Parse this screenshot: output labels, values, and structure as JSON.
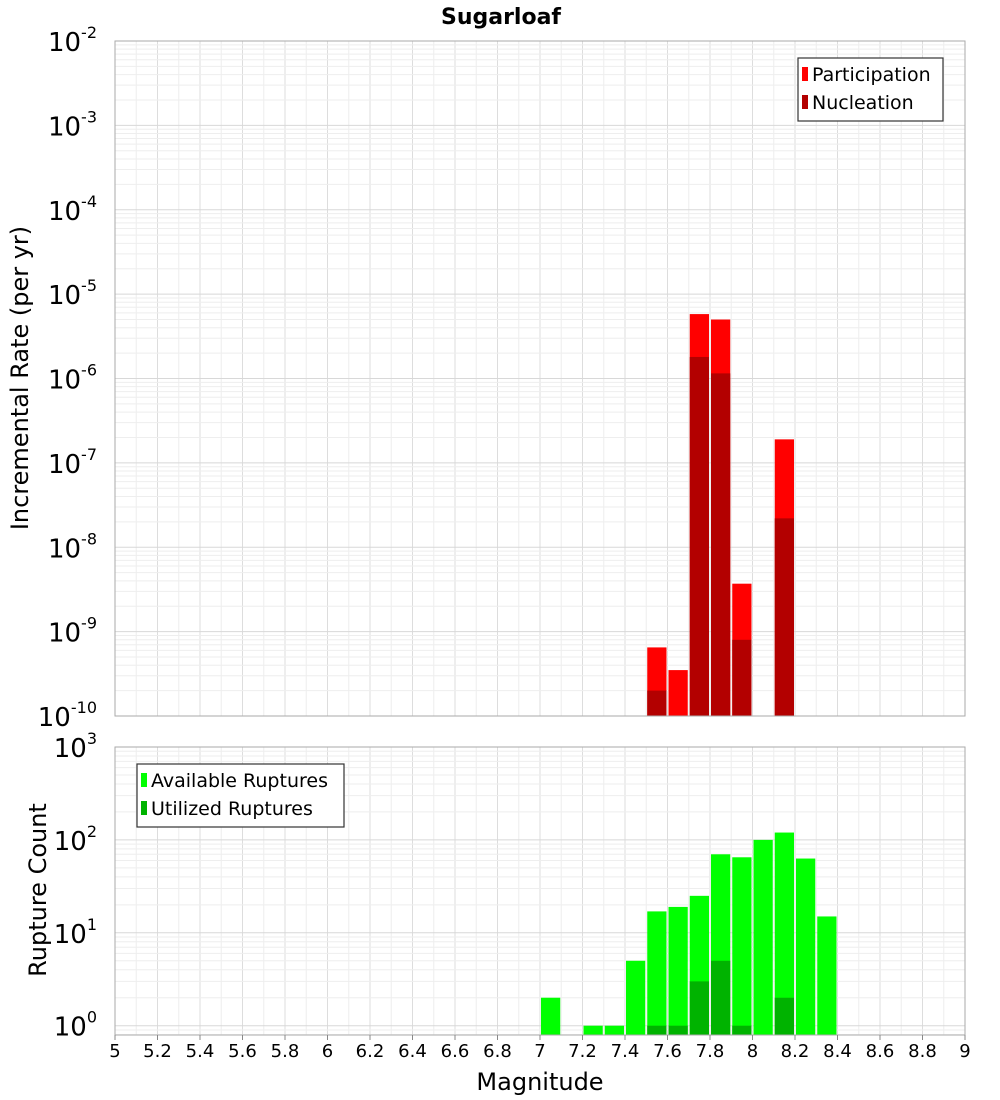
{
  "chart_data": [
    {
      "type": "bar",
      "panel": "top",
      "title": "Sugarloaf",
      "ylabel": "Incremental Rate (per yr)",
      "xlabel": "",
      "yscale": "log",
      "ylim_exp": [
        -10,
        -2
      ],
      "xlim": [
        5,
        9
      ],
      "bin_width": 0.1,
      "y_tick_exponents": [
        -2,
        -3,
        -4,
        -5,
        -6,
        -7,
        -8,
        -9,
        -10
      ],
      "legend": [
        {
          "label": "Participation",
          "color": "#ff0000"
        },
        {
          "label": "Nucleation",
          "color": "#b30000"
        }
      ],
      "legend_position": "top-right",
      "series": [
        {
          "name": "Participation",
          "color": "#ff0000",
          "x": [
            7.55,
            7.65,
            7.75,
            7.85,
            7.95,
            8.15
          ],
          "values": [
            6.5e-10,
            3.5e-10,
            5.8e-06,
            5e-06,
            3.7e-09,
            1.9e-07
          ]
        },
        {
          "name": "Nucleation",
          "color": "#b30000",
          "x": [
            7.55,
            7.75,
            7.85,
            7.95,
            8.15
          ],
          "values": [
            2e-10,
            1.8e-06,
            1.15e-06,
            8e-10,
            2.2e-08
          ]
        }
      ]
    },
    {
      "type": "bar",
      "panel": "bottom",
      "title": "",
      "ylabel": "Rupture Count",
      "xlabel": "Magnitude",
      "yscale": "log",
      "ylim_exp": [
        -0.1,
        3
      ],
      "xlim": [
        5,
        9
      ],
      "bin_width": 0.1,
      "y_tick_exponents": [
        3,
        2,
        1,
        0
      ],
      "x_ticks": [
        "5",
        "5.2",
        "5.4",
        "5.6",
        "5.8",
        "6",
        "6.2",
        "6.4",
        "6.6",
        "6.8",
        "7",
        "7.2",
        "7.4",
        "7.6",
        "7.8",
        "8",
        "8.2",
        "8.4",
        "8.6",
        "8.8",
        "9"
      ],
      "legend": [
        {
          "label": "Available Ruptures",
          "color": "#00ff00"
        },
        {
          "label": "Utilized Ruptures",
          "color": "#00b300"
        }
      ],
      "legend_position": "top-left",
      "series": [
        {
          "name": "Available Ruptures",
          "color": "#00ff00",
          "x": [
            7.05,
            7.25,
            7.35,
            7.45,
            7.55,
            7.65,
            7.75,
            7.85,
            7.95,
            8.05,
            8.15,
            8.25,
            8.35
          ],
          "values": [
            2,
            1,
            1,
            5,
            17,
            19,
            25,
            70,
            65,
            100,
            120,
            63,
            15
          ]
        },
        {
          "name": "Utilized Ruptures",
          "color": "#00b300",
          "x": [
            7.55,
            7.65,
            7.75,
            7.85,
            7.95,
            8.15
          ],
          "values": [
            1,
            1,
            3,
            5,
            1,
            2
          ]
        }
      ]
    }
  ]
}
